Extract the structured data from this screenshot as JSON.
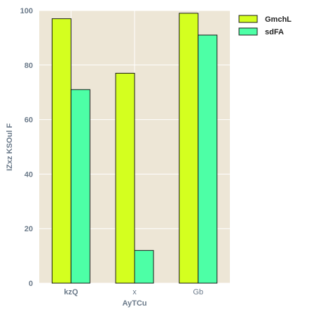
{
  "chart_data": {
    "type": "bar",
    "categories": [
      "kzQ",
      "x",
      "Gb"
    ],
    "series": [
      {
        "name": "GmchL",
        "values": [
          97,
          77,
          99
        ],
        "color": "#d4ff1f"
      },
      {
        "name": "sdFA",
        "values": [
          71,
          12,
          91
        ],
        "color": "#4dffa6"
      }
    ],
    "xlabel": "AyTCu",
    "ylabel": "IZxz KSOul F",
    "ylim": [
      0,
      100
    ],
    "yticks": [
      0,
      20,
      40,
      60,
      80,
      100
    ],
    "grid": true,
    "legend": "top-right-outside",
    "plot_background": "#ede6d6"
  }
}
